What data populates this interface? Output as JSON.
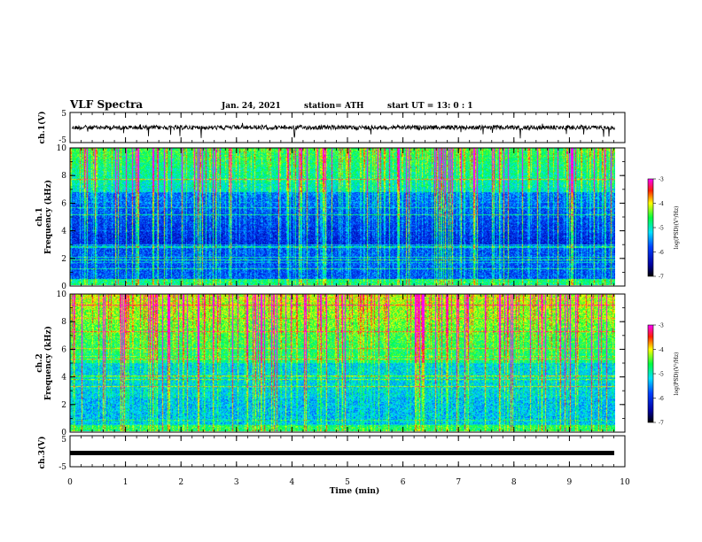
{
  "header": {
    "title": "VLF Spectra",
    "date": "Jan. 24, 2021",
    "station": "station= ATH",
    "start": "start  UT  =   13: 0   : 1"
  },
  "chart_data": [
    {
      "type": "line",
      "ylabel": "ch.1(V)",
      "ylim": [
        -5,
        5
      ],
      "yticks": [
        "5",
        "-5"
      ],
      "description_level": 0
    },
    {
      "type": "heatmap",
      "ylabel": "ch.1\nFrequency (kHz)",
      "ylabel_top": "ch.1",
      "ylabel_bottom": "Frequency (kHz)",
      "ylim": [
        0,
        10
      ],
      "yticks": [
        "0",
        "2",
        "4",
        "6",
        "8",
        "10"
      ],
      "colorbar": {
        "label": "log(PSD)(V²/Hz)",
        "range": [
          -7,
          -3
        ],
        "ticks": [
          "-3",
          "-4",
          "-5",
          "-6",
          "-7"
        ]
      }
    },
    {
      "type": "heatmap",
      "ylabel_top": "ch.2",
      "ylabel_bottom": "Frequency (kHz)",
      "ylim": [
        0,
        10
      ],
      "yticks": [
        "0",
        "2",
        "4",
        "6",
        "8",
        "10"
      ],
      "colorbar": {
        "label": "log(PSD)(V²/Hz)",
        "range": [
          -7,
          -3
        ],
        "ticks": [
          "-3",
          "-4",
          "-5",
          "-6",
          "-7"
        ]
      }
    },
    {
      "type": "line",
      "ylabel": "ch.3(V)",
      "ylim": [
        -5,
        5
      ],
      "yticks": [
        "5",
        "-5"
      ],
      "level": -1
    }
  ],
  "xaxis": {
    "label": "Time (min)",
    "range": [
      0,
      10
    ],
    "ticks": [
      "0",
      "1",
      "2",
      "3",
      "4",
      "5",
      "6",
      "7",
      "8",
      "9",
      "10"
    ],
    "data_end": 9.82
  },
  "colors": {
    "scale": [
      "#000080",
      "#0000ff",
      "#00ffff",
      "#00ff00",
      "#ffff00",
      "#ff0000",
      "#ff00ff"
    ]
  }
}
